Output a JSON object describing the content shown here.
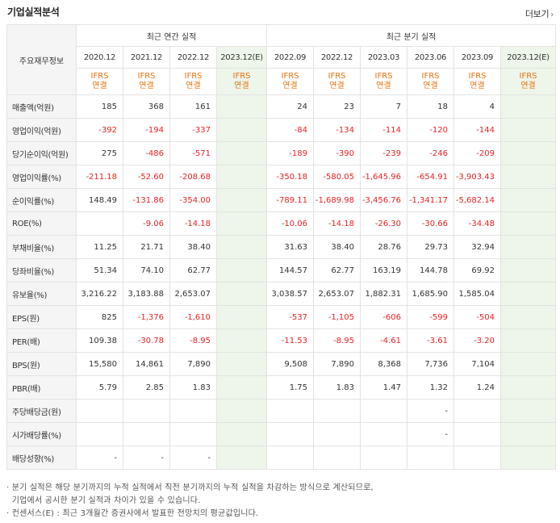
{
  "title": "기업실적분석",
  "more_label": "더보기",
  "corner_label": "주요재무정보",
  "annual_header": "최근 연간 실적",
  "quarter_header": "최근 분기 실적",
  "annual_periods": [
    "2020.12",
    "2021.12",
    "2022.12",
    "2023.12(E)"
  ],
  "quarter_periods": [
    "2022.09",
    "2022.12",
    "2023.03",
    "2023.06",
    "2023.09",
    "2023.12(E)"
  ],
  "ifrs_line1": "IFRS",
  "ifrs_line2": "연결",
  "rows": [
    {
      "label": "매출액(억원)",
      "a": [
        "185",
        "368",
        "161",
        ""
      ],
      "q": [
        "24",
        "23",
        "7",
        "18",
        "4",
        ""
      ]
    },
    {
      "label": "영업이익(억원)",
      "a": [
        "-392",
        "-194",
        "-337",
        ""
      ],
      "q": [
        "-84",
        "-134",
        "-114",
        "-120",
        "-144",
        ""
      ]
    },
    {
      "label": "당기순이익(억원)",
      "a": [
        "275",
        "-486",
        "-571",
        ""
      ],
      "q": [
        "-189",
        "-390",
        "-239",
        "-246",
        "-209",
        ""
      ]
    },
    {
      "label": "영업이익률(%)",
      "a": [
        "-211.18",
        "-52.60",
        "-208.68",
        ""
      ],
      "q": [
        "-350.18",
        "-580.05",
        "-1,645.96",
        "-654.91",
        "-3,903.43",
        ""
      ]
    },
    {
      "label": "순이익률(%)",
      "a": [
        "148.49",
        "-131.86",
        "-354.00",
        ""
      ],
      "q": [
        "-789.11",
        "-1,689.98",
        "-3,456.76",
        "-1,341.17",
        "-5,682.14",
        ""
      ]
    },
    {
      "label": "ROE(%)",
      "a": [
        "",
        "-9.06",
        "-14.18",
        ""
      ],
      "q": [
        "-10.06",
        "-14.18",
        "-26.30",
        "-30.66",
        "-34.48",
        ""
      ]
    },
    {
      "label": "부채비율(%)",
      "a": [
        "11.25",
        "21.71",
        "38.40",
        ""
      ],
      "q": [
        "31.63",
        "38.40",
        "28.76",
        "29.73",
        "32.94",
        ""
      ]
    },
    {
      "label": "당좌비율(%)",
      "a": [
        "51.34",
        "74.10",
        "62.77",
        ""
      ],
      "q": [
        "144.57",
        "62.77",
        "163.19",
        "144.78",
        "69.92",
        ""
      ]
    },
    {
      "label": "유보율(%)",
      "a": [
        "3,216.22",
        "3,183.88",
        "2,653.07",
        ""
      ],
      "q": [
        "3,038.57",
        "2,653.07",
        "1,882.31",
        "1,685.90",
        "1,585.04",
        ""
      ]
    },
    {
      "label": "EPS(원)",
      "a": [
        "825",
        "-1,376",
        "-1,610",
        ""
      ],
      "q": [
        "-537",
        "-1,105",
        "-606",
        "-599",
        "-504",
        ""
      ]
    },
    {
      "label": "PER(배)",
      "a": [
        "109.38",
        "-30.78",
        "-8.95",
        ""
      ],
      "q": [
        "-11.53",
        "-8.95",
        "-4.61",
        "-3.61",
        "-3.20",
        ""
      ]
    },
    {
      "label": "BPS(원)",
      "a": [
        "15,580",
        "14,861",
        "7,890",
        ""
      ],
      "q": [
        "9,508",
        "7,890",
        "8,368",
        "7,736",
        "7,104",
        ""
      ]
    },
    {
      "label": "PBR(배)",
      "a": [
        "5.79",
        "2.85",
        "1.83",
        ""
      ],
      "q": [
        "1.75",
        "1.83",
        "1.47",
        "1.32",
        "1.24",
        ""
      ]
    },
    {
      "label": "주당배당금(원)",
      "a": [
        "",
        "",
        "",
        ""
      ],
      "q": [
        "",
        "",
        "",
        "-",
        "",
        ""
      ]
    },
    {
      "label": "시가배당률(%)",
      "a": [
        "",
        "",
        "",
        ""
      ],
      "q": [
        "",
        "",
        "",
        "-",
        "",
        ""
      ]
    },
    {
      "label": "배당성향(%)",
      "a": [
        "-",
        "-",
        "-",
        ""
      ],
      "q": [
        "",
        "",
        "",
        "",
        "",
        ""
      ]
    }
  ],
  "notes": [
    "· 분기 실적은 해당 분기까지의 누적 실적에서 직전 분기까지의 누적 실적을 차감하는 방식으로 계산되므로,",
    "  기업에서 공시한 분기 실적과 차이가 있을 수 있습니다.",
    "· 컨센서스(E) : 최근 3개월간 증권사에서 발표한 전망치의 평균값입니다."
  ],
  "colors": {
    "negative": "#e82323",
    "ifrs": "#e8720c",
    "estimate_bg": "#eef5ea",
    "header_bg": "#f5f5f5"
  }
}
